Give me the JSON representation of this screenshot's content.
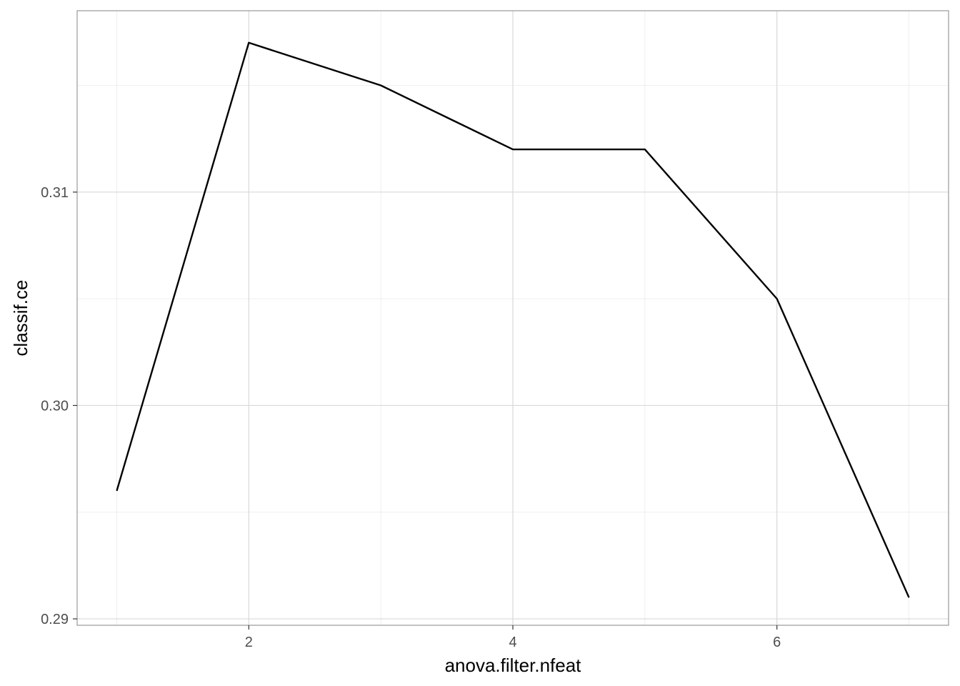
{
  "chart_data": {
    "type": "line",
    "xlabel": "anova.filter.nfeat",
    "ylabel": "classif.ce",
    "xlim": [
      0.7,
      7.3
    ],
    "ylim": [
      0.2897,
      0.3185
    ],
    "x_ticks": [
      2,
      4,
      6
    ],
    "x_tick_labels": [
      "2",
      "4",
      "6"
    ],
    "x_minor_ticks": [
      1,
      3,
      5,
      7
    ],
    "y_ticks": [
      0.29,
      0.3,
      0.31
    ],
    "y_tick_labels": [
      "0.29",
      "0.30",
      "0.31"
    ],
    "y_minor_ticks": [
      0.295,
      0.305,
      0.315
    ],
    "grid": true,
    "series": [
      {
        "x": [
          1,
          2,
          3,
          4,
          5,
          6,
          7
        ],
        "y": [
          0.296,
          0.317,
          0.315,
          0.312,
          0.312,
          0.305,
          0.291
        ],
        "color": "#000000"
      }
    ]
  }
}
